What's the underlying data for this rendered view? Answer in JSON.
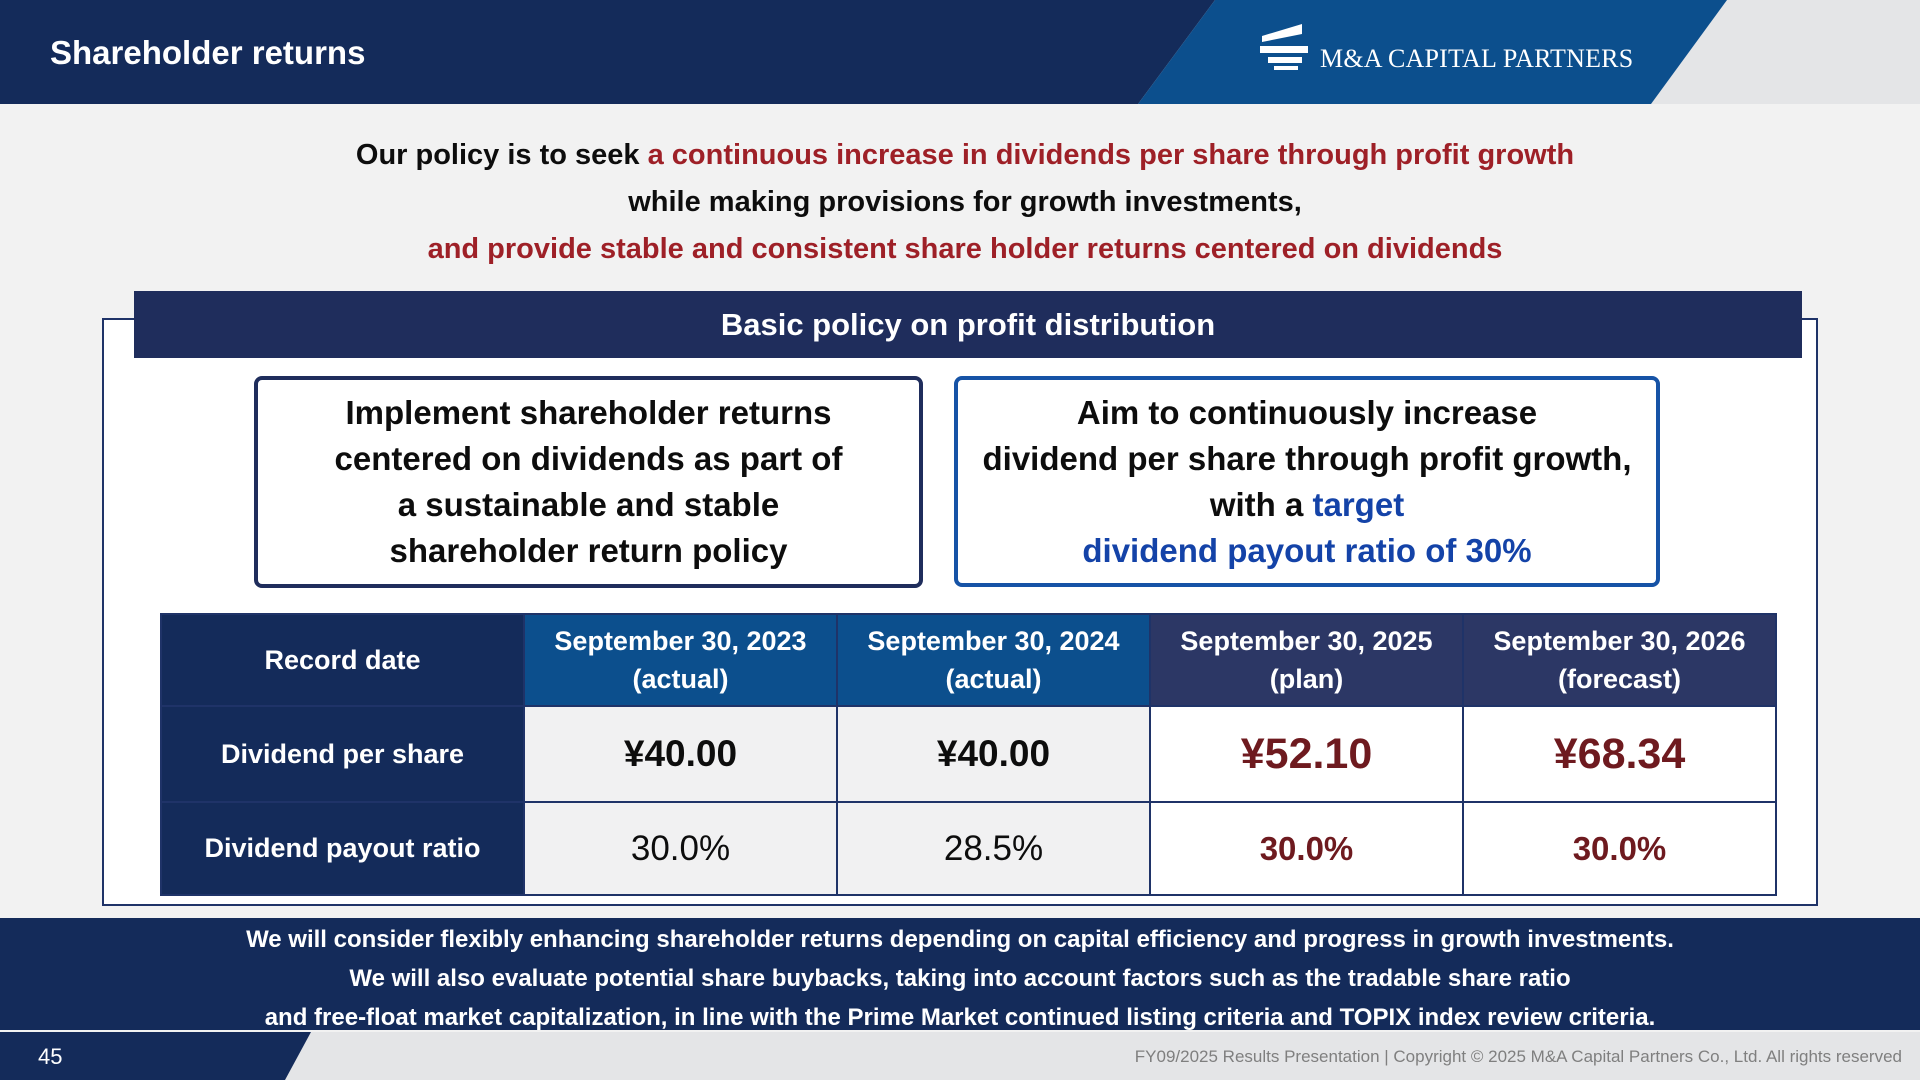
{
  "header": {
    "title": "Shareholder returns",
    "logo_text": "M&A CAPITAL PARTNERS",
    "logo_icon": "building-stack-icon"
  },
  "policy": {
    "line1_a": "Our policy is to seek ",
    "line1_b": "a continuous increase in dividends per share through profit growth",
    "line2": "while making provisions for growth investments,",
    "line3": "and provide stable and consistent share holder returns centered on dividends"
  },
  "panel": {
    "title": "Basic policy on profit distribution",
    "left_box": [
      "Implement shareholder returns",
      "centered on dividends as part of",
      "a sustainable and stable",
      "shareholder return policy"
    ],
    "right_box": {
      "line1": "Aim to continuously increase",
      "line2": "dividend per share through profit growth,",
      "line3_a": "with a ",
      "line3_b": "target",
      "line4": "dividend payout ratio of 30%"
    }
  },
  "table": {
    "corner": "Record date",
    "columns": [
      {
        "date": "September 30, 2023",
        "status": "(actual)"
      },
      {
        "date": "September 30, 2024",
        "status": "(actual)"
      },
      {
        "date": "September 30, 2025",
        "status": "(plan)"
      },
      {
        "date": "September 30, 2026",
        "status": "(forecast)"
      }
    ],
    "rows": [
      {
        "label": "Dividend per share",
        "values": [
          "¥40.00",
          "¥40.00",
          "¥52.10",
          "¥68.34"
        ]
      },
      {
        "label": "Dividend payout ratio",
        "values": [
          "30.0%",
          "28.5%",
          "30.0%",
          "30.0%"
        ]
      }
    ]
  },
  "notes": [
    "We will consider flexibly enhancing shareholder returns depending on capital efficiency and progress in growth investments.",
    "We will also evaluate potential share buybacks, taking into account factors such as the tradable share ratio",
    "and free-float market capitalization, in line with the Prime Market continued listing criteria and TOPIX index review criteria."
  ],
  "footer": {
    "page_number": "45",
    "copyright": "FY09/2025 Results Presentation | Copyright © 2025 M&A Capital Partners Co., Ltd. All rights reserved"
  },
  "colors": {
    "navy": "#142b5a",
    "blue": "#0c4f8d",
    "accent_red": "#9e2027",
    "dark_red": "#6e1a1f",
    "target_blue": "#1443a8"
  }
}
